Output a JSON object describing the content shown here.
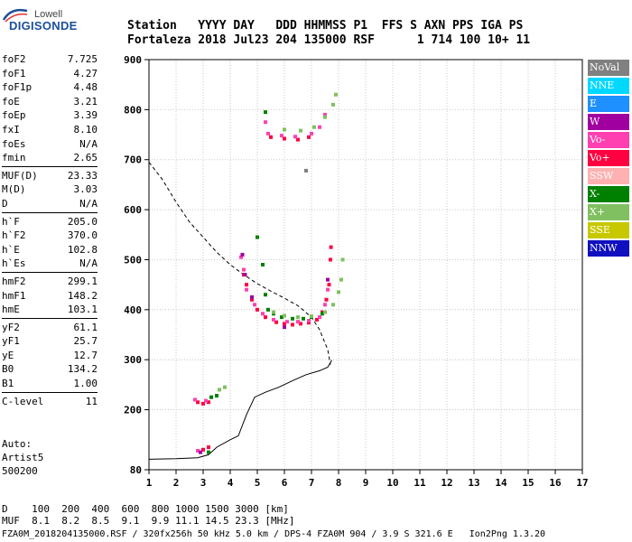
{
  "logo": {
    "top": "Lowell",
    "main": "DIGISONDE"
  },
  "header": {
    "line1": "Station   YYYY DAY   DDD HHMMSS P1  FFS S AXN PPS IGA PS",
    "line2": "Fortaleza 2018 Jul23 204 135000 RSF      1 714 100 10+ 11"
  },
  "params": [
    {
      "k": "foF2",
      "v": "7.725"
    },
    {
      "k": "foF1",
      "v": "4.27"
    },
    {
      "k": "foF1p",
      "v": "4.48"
    },
    {
      "k": "foE",
      "v": "3.21"
    },
    {
      "k": "foEp",
      "v": "3.39"
    },
    {
      "k": "fxI",
      "v": "8.10"
    },
    {
      "k": "foEs",
      "v": "N/A"
    },
    {
      "k": "fmin",
      "v": "2.65"
    },
    {
      "k": "MUF(D)",
      "v": "23.33"
    },
    {
      "k": "M(D)",
      "v": "3.03"
    },
    {
      "k": "D",
      "v": "N/A"
    },
    {
      "k": "h`F",
      "v": "205.0"
    },
    {
      "k": "h`F2",
      "v": "370.0"
    },
    {
      "k": "h`E",
      "v": "102.8"
    },
    {
      "k": "h`Es",
      "v": "N/A"
    },
    {
      "k": "hmF2",
      "v": "299.1"
    },
    {
      "k": "hmF1",
      "v": "148.2"
    },
    {
      "k": "hmE",
      "v": "103.1"
    },
    {
      "k": "yF2",
      "v": "61.1"
    },
    {
      "k": "yF1",
      "v": "25.7"
    },
    {
      "k": "yE",
      "v": "12.7"
    },
    {
      "k": "B0",
      "v": "134.2"
    },
    {
      "k": "B1",
      "v": "1.00"
    },
    {
      "k": "C-level",
      "v": "11"
    }
  ],
  "auto": {
    "line1": "Auto:",
    "line2": "Artist5",
    "line3": "500200"
  },
  "legend": [
    {
      "label": "NoVal",
      "color": "#808080"
    },
    {
      "label": "NNE",
      "color": "#00d8ff"
    },
    {
      "label": "E",
      "color": "#1e90ff"
    },
    {
      "label": "W",
      "color": "#a000a0"
    },
    {
      "label": "Vo-",
      "color": "#ff40b0"
    },
    {
      "label": "Vo+",
      "color": "#ff0040"
    },
    {
      "label": "SSW",
      "color": "#ffb0b0"
    },
    {
      "label": "X-",
      "color": "#008000"
    },
    {
      "label": "X+",
      "color": "#80c060"
    },
    {
      "label": "SSE",
      "color": "#c8c800"
    },
    {
      "label": "NNW",
      "color": "#1010c0"
    }
  ],
  "footer": {
    "line1": "D    100  200  400  600  800 1000 1500 3000 [km]",
    "line2": "MUF  8.1  8.2  8.5  9.1  9.9 11.1 14.5 23.3 [MHz]",
    "line3": "FZA0M_2018204135000.RSF / 320fx256h 50 kHz 5.0 km / DPS-4 FZA0M 904 / 3.9 S 321.6 E   Ion2Png 1.3.20"
  },
  "chart_data": {
    "type": "scatter",
    "xlim": [
      1,
      17
    ],
    "ylim": [
      80,
      900
    ],
    "x_ticks": [
      1,
      2,
      3,
      4,
      5,
      6,
      7,
      8,
      9,
      10,
      11,
      12,
      13,
      14,
      15,
      16,
      17
    ],
    "y_ticks": [
      80,
      200,
      300,
      400,
      500,
      600,
      700,
      800,
      900
    ],
    "grid": true,
    "series": [
      {
        "name": "Vo+",
        "color": "#ff0040",
        "points": [
          [
            2.8,
            215
          ],
          [
            3.0,
            212
          ],
          [
            3.2,
            215
          ],
          [
            4.5,
            470
          ],
          [
            4.6,
            450
          ],
          [
            4.8,
            420
          ],
          [
            5.0,
            400
          ],
          [
            5.3,
            385
          ],
          [
            5.7,
            375
          ],
          [
            6.0,
            372
          ],
          [
            6.3,
            370
          ],
          [
            6.6,
            372
          ],
          [
            6.9,
            374
          ],
          [
            7.2,
            380
          ],
          [
            7.4,
            395
          ],
          [
            7.55,
            420
          ],
          [
            7.65,
            450
          ],
          [
            7.7,
            500
          ],
          [
            7.72,
            525
          ],
          [
            5.5,
            745
          ],
          [
            6.0,
            742
          ],
          [
            6.5,
            740
          ],
          [
            6.9,
            745
          ],
          [
            3.0,
            120
          ],
          [
            3.2,
            125
          ]
        ]
      },
      {
        "name": "Vo-",
        "color": "#ff40b0",
        "points": [
          [
            2.7,
            220
          ],
          [
            3.1,
            218
          ],
          [
            4.4,
            505
          ],
          [
            4.5,
            480
          ],
          [
            4.6,
            440
          ],
          [
            4.9,
            410
          ],
          [
            5.2,
            392
          ],
          [
            5.6,
            380
          ],
          [
            6.1,
            376
          ],
          [
            6.5,
            376
          ],
          [
            6.9,
            378
          ],
          [
            7.3,
            385
          ],
          [
            7.5,
            410
          ],
          [
            7.6,
            440
          ],
          [
            5.4,
            752
          ],
          [
            5.9,
            748
          ],
          [
            6.4,
            746
          ],
          [
            7.0,
            752
          ],
          [
            7.3,
            765
          ],
          [
            7.5,
            790
          ],
          [
            5.3,
            775
          ],
          [
            2.8,
            118
          ]
        ]
      },
      {
        "name": "W",
        "color": "#a000a0",
        "points": [
          [
            4.45,
            510
          ],
          [
            4.55,
            470
          ],
          [
            4.8,
            425
          ],
          [
            6.0,
            365
          ],
          [
            7.6,
            460
          ],
          [
            2.9,
            115
          ]
        ]
      },
      {
        "name": "X-",
        "color": "#008000",
        "points": [
          [
            3.3,
            225
          ],
          [
            3.5,
            228
          ],
          [
            5.0,
            545
          ],
          [
            5.2,
            490
          ],
          [
            5.3,
            430
          ],
          [
            5.4,
            400
          ],
          [
            5.6,
            392
          ],
          [
            5.9,
            385
          ],
          [
            6.3,
            382
          ],
          [
            6.7,
            382
          ],
          [
            7.0,
            385
          ],
          [
            7.4,
            392
          ],
          [
            5.3,
            795
          ],
          [
            3.2,
            115
          ]
        ]
      },
      {
        "name": "X+",
        "color": "#80c060",
        "points": [
          [
            3.6,
            240
          ],
          [
            3.8,
            245
          ],
          [
            5.6,
            395
          ],
          [
            6.0,
            388
          ],
          [
            6.5,
            385
          ],
          [
            7.0,
            387
          ],
          [
            7.5,
            395
          ],
          [
            7.8,
            410
          ],
          [
            8.0,
            435
          ],
          [
            8.1,
            460
          ],
          [
            8.15,
            500
          ],
          [
            6.0,
            760
          ],
          [
            6.6,
            758
          ],
          [
            7.1,
            765
          ],
          [
            7.5,
            785
          ],
          [
            7.8,
            810
          ],
          [
            7.9,
            830
          ]
        ]
      },
      {
        "name": "NoVal",
        "color": "#808080",
        "points": [
          [
            6.8,
            678
          ]
        ]
      }
    ],
    "virtual_height_curve": {
      "style": "dashed",
      "points": [
        [
          1.0,
          695
        ],
        [
          1.5,
          660
        ],
        [
          2.0,
          615
        ],
        [
          2.5,
          575
        ],
        [
          3.0,
          545
        ],
        [
          3.5,
          515
        ],
        [
          4.0,
          490
        ],
        [
          4.5,
          470
        ],
        [
          5.0,
          452
        ],
        [
          5.5,
          437
        ],
        [
          6.0,
          423
        ],
        [
          6.5,
          408
        ],
        [
          7.0,
          385
        ],
        [
          7.3,
          360
        ],
        [
          7.6,
          320
        ],
        [
          7.7,
          290
        ]
      ]
    },
    "true_height_profile": {
      "style": "solid",
      "points": [
        [
          1.0,
          101
        ],
        [
          2.0,
          102
        ],
        [
          2.8,
          104
        ],
        [
          3.2,
          110
        ],
        [
          3.5,
          125
        ],
        [
          4.0,
          140
        ],
        [
          4.3,
          148
        ],
        [
          4.6,
          190
        ],
        [
          4.9,
          225
        ],
        [
          5.3,
          235
        ],
        [
          5.8,
          245
        ],
        [
          6.3,
          258
        ],
        [
          6.8,
          270
        ],
        [
          7.3,
          278
        ],
        [
          7.6,
          285
        ],
        [
          7.75,
          299
        ]
      ]
    }
  }
}
